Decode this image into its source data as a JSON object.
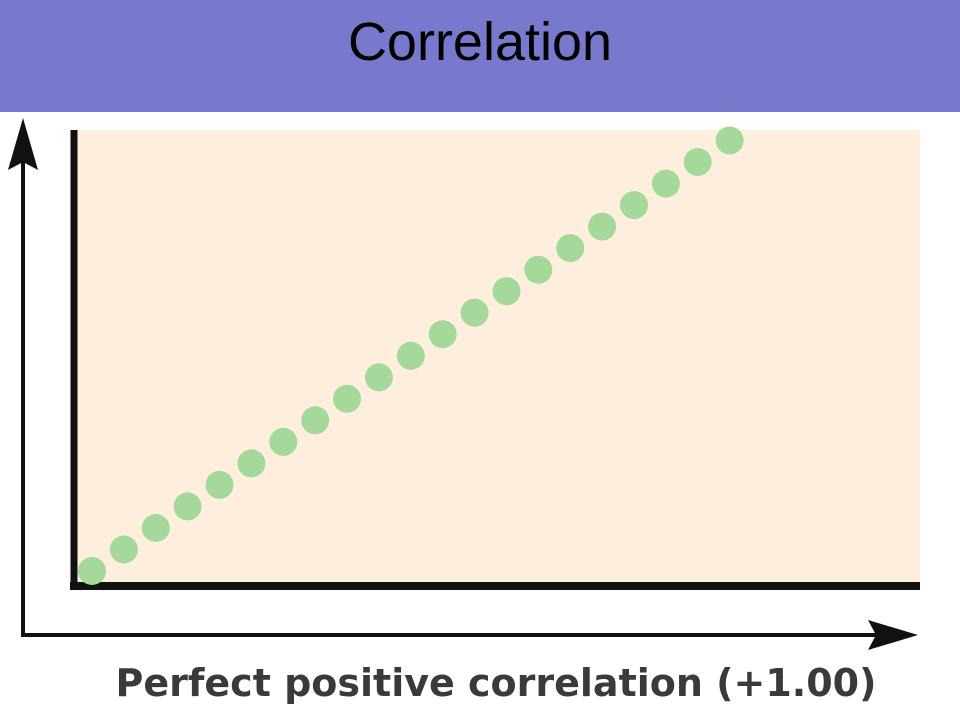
{
  "slide": {
    "title": "Correlation"
  },
  "colors": {
    "title_bar": "#7878cc",
    "plot_background": "#fdeedd",
    "points": "#a4d99a",
    "axes": "#111111"
  },
  "chart_data": {
    "type": "scatter",
    "title": "",
    "caption": "Perfect positive correlation (+1.00)",
    "xlabel": "",
    "ylabel": "",
    "xlim": [
      0,
      21
    ],
    "ylim": [
      0,
      21
    ],
    "grid": false,
    "legend": "none",
    "series": [
      {
        "x": [
          0,
          1,
          2,
          3,
          4,
          5,
          6,
          7,
          8,
          9,
          10,
          11,
          12,
          13,
          14,
          15,
          16,
          17,
          18,
          19,
          20
        ],
        "y": [
          0,
          1,
          2,
          3,
          4,
          5,
          6,
          7,
          8,
          9,
          10,
          11,
          12,
          13,
          14,
          15,
          16,
          17,
          18,
          19,
          20
        ]
      }
    ]
  }
}
